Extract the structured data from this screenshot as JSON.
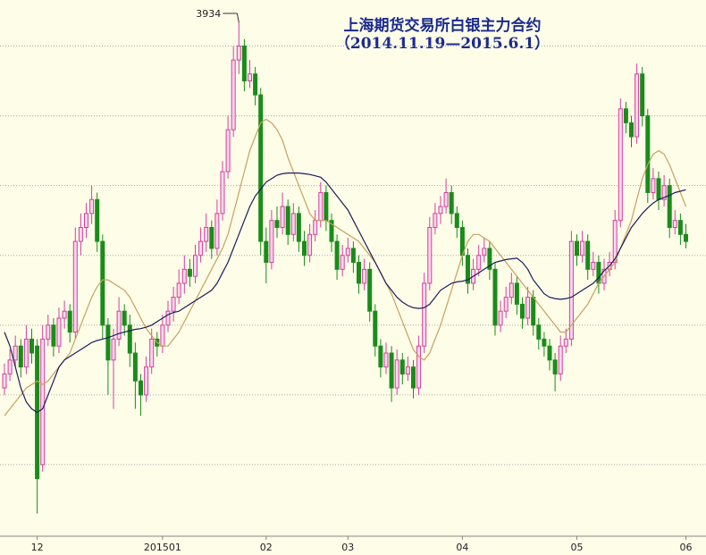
{
  "chart_data": {
    "type": "candlestick",
    "title": "上海期货交易所白银主力合约",
    "subtitle": "（2014.11.19—2015.6.1）",
    "ylim": [
      3200,
      3966
    ],
    "grid": [
      3300,
      3400,
      3500,
      3600,
      3700,
      3800,
      3900
    ],
    "up_color": "#d43fa0",
    "down_color": "#1a8c1a",
    "max_label_index": 43,
    "categories": [
      null,
      null,
      null,
      null,
      null,
      null,
      "12",
      null,
      null,
      null,
      null,
      null,
      null,
      null,
      null,
      null,
      null,
      null,
      null,
      null,
      null,
      null,
      null,
      null,
      null,
      null,
      null,
      null,
      null,
      "201501",
      null,
      null,
      null,
      null,
      null,
      null,
      null,
      null,
      null,
      null,
      null,
      null,
      null,
      null,
      null,
      null,
      null,
      null,
      "02",
      null,
      null,
      null,
      null,
      null,
      null,
      null,
      null,
      null,
      null,
      null,
      null,
      null,
      null,
      "03",
      null,
      null,
      null,
      null,
      null,
      null,
      null,
      null,
      null,
      null,
      null,
      null,
      null,
      null,
      null,
      null,
      null,
      null,
      null,
      null,
      "04",
      null,
      null,
      null,
      null,
      null,
      null,
      null,
      null,
      null,
      null,
      null,
      null,
      null,
      null,
      null,
      null,
      null,
      null,
      null,
      null,
      "05",
      null,
      null,
      null,
      null,
      null,
      null,
      null,
      null,
      null,
      null,
      null,
      null,
      null,
      null,
      null,
      null,
      null,
      null,
      null,
      "06"
    ],
    "ohlc": [
      [
        3410,
        3445,
        3400,
        3430
      ],
      [
        3430,
        3465,
        3420,
        3450
      ],
      [
        3450,
        3485,
        3440,
        3470
      ],
      [
        3470,
        3480,
        3425,
        3440
      ],
      [
        3440,
        3500,
        3430,
        3480
      ],
      [
        3480,
        3495,
        3445,
        3460
      ],
      [
        3470,
        3480,
        3230,
        3280
      ],
      [
        3300,
        3500,
        3290,
        3480
      ],
      [
        3480,
        3515,
        3470,
        3500
      ],
      [
        3500,
        3510,
        3455,
        3470
      ],
      [
        3470,
        3525,
        3460,
        3510
      ],
      [
        3510,
        3535,
        3495,
        3520
      ],
      [
        3520,
        3530,
        3475,
        3490
      ],
      [
        3490,
        3640,
        3480,
        3620
      ],
      [
        3620,
        3660,
        3600,
        3640
      ],
      [
        3640,
        3675,
        3625,
        3660
      ],
      [
        3660,
        3700,
        3645,
        3680
      ],
      [
        3680,
        3690,
        3605,
        3620
      ],
      [
        3620,
        3630,
        3480,
        3500
      ],
      [
        3500,
        3510,
        3400,
        3450
      ],
      [
        3450,
        3495,
        3380,
        3480
      ],
      [
        3480,
        3540,
        3470,
        3520
      ],
      [
        3520,
        3530,
        3485,
        3500
      ],
      [
        3500,
        3515,
        3440,
        3460
      ],
      [
        3460,
        3475,
        3380,
        3420
      ],
      [
        3420,
        3430,
        3370,
        3400
      ],
      [
        3400,
        3455,
        3390,
        3440
      ],
      [
        3440,
        3495,
        3430,
        3480
      ],
      [
        3480,
        3490,
        3455,
        3470
      ],
      [
        3470,
        3515,
        3460,
        3500
      ],
      [
        3500,
        3535,
        3490,
        3520
      ],
      [
        3520,
        3555,
        3505,
        3540
      ],
      [
        3540,
        3580,
        3530,
        3560
      ],
      [
        3560,
        3600,
        3545,
        3580
      ],
      [
        3580,
        3595,
        3555,
        3570
      ],
      [
        3570,
        3615,
        3560,
        3600
      ],
      [
        3600,
        3640,
        3590,
        3620
      ],
      [
        3620,
        3660,
        3605,
        3640
      ],
      [
        3640,
        3650,
        3595,
        3610
      ],
      [
        3610,
        3680,
        3600,
        3660
      ],
      [
        3660,
        3735,
        3650,
        3720
      ],
      [
        3720,
        3800,
        3710,
        3780
      ],
      [
        3780,
        3900,
        3770,
        3880
      ],
      [
        3880,
        3934,
        3860,
        3900
      ],
      [
        3900,
        3910,
        3835,
        3850
      ],
      [
        3850,
        3880,
        3840,
        3860
      ],
      [
        3860,
        3870,
        3815,
        3830
      ],
      [
        3830,
        3840,
        3600,
        3620
      ],
      [
        3620,
        3640,
        3560,
        3590
      ],
      [
        3590,
        3665,
        3580,
        3650
      ],
      [
        3650,
        3670,
        3625,
        3640
      ],
      [
        3640,
        3690,
        3630,
        3670
      ],
      [
        3670,
        3680,
        3615,
        3630
      ],
      [
        3630,
        3675,
        3620,
        3660
      ],
      [
        3660,
        3670,
        3605,
        3620
      ],
      [
        3620,
        3635,
        3585,
        3600
      ],
      [
        3600,
        3645,
        3590,
        3630
      ],
      [
        3630,
        3665,
        3620,
        3650
      ],
      [
        3650,
        3705,
        3640,
        3690
      ],
      [
        3690,
        3700,
        3635,
        3650
      ],
      [
        3650,
        3660,
        3605,
        3620
      ],
      [
        3620,
        3630,
        3565,
        3580
      ],
      [
        3580,
        3615,
        3570,
        3600
      ],
      [
        3600,
        3625,
        3590,
        3610
      ],
      [
        3610,
        3620,
        3575,
        3590
      ],
      [
        3590,
        3600,
        3545,
        3560
      ],
      [
        3560,
        3595,
        3550,
        3580
      ],
      [
        3580,
        3590,
        3505,
        3520
      ],
      [
        3520,
        3530,
        3455,
        3470
      ],
      [
        3470,
        3480,
        3425,
        3440
      ],
      [
        3440,
        3475,
        3430,
        3460
      ],
      [
        3460,
        3470,
        3390,
        3410
      ],
      [
        3410,
        3465,
        3400,
        3450
      ],
      [
        3450,
        3460,
        3415,
        3430
      ],
      [
        3430,
        3455,
        3420,
        3440
      ],
      [
        3440,
        3450,
        3395,
        3410
      ],
      [
        3410,
        3485,
        3400,
        3470
      ],
      [
        3470,
        3575,
        3460,
        3560
      ],
      [
        3560,
        3655,
        3550,
        3640
      ],
      [
        3640,
        3675,
        3630,
        3660
      ],
      [
        3660,
        3685,
        3645,
        3670
      ],
      [
        3670,
        3710,
        3660,
        3690
      ],
      [
        3690,
        3700,
        3645,
        3660
      ],
      [
        3660,
        3670,
        3625,
        3640
      ],
      [
        3640,
        3650,
        3585,
        3600
      ],
      [
        3600,
        3610,
        3545,
        3560
      ],
      [
        3560,
        3595,
        3550,
        3580
      ],
      [
        3580,
        3615,
        3570,
        3600
      ],
      [
        3600,
        3625,
        3590,
        3610
      ],
      [
        3610,
        3620,
        3565,
        3580
      ],
      [
        3580,
        3590,
        3485,
        3500
      ],
      [
        3500,
        3535,
        3490,
        3520
      ],
      [
        3520,
        3555,
        3510,
        3540
      ],
      [
        3540,
        3575,
        3530,
        3560
      ],
      [
        3560,
        3570,
        3515,
        3530
      ],
      [
        3530,
        3540,
        3495,
        3510
      ],
      [
        3510,
        3555,
        3500,
        3540
      ],
      [
        3540,
        3550,
        3485,
        3500
      ],
      [
        3500,
        3510,
        3465,
        3480
      ],
      [
        3480,
        3490,
        3455,
        3470
      ],
      [
        3470,
        3480,
        3435,
        3450
      ],
      [
        3450,
        3460,
        3405,
        3430
      ],
      [
        3430,
        3485,
        3420,
        3470
      ],
      [
        3470,
        3495,
        3460,
        3480
      ],
      [
        3480,
        3635,
        3470,
        3620
      ],
      [
        3620,
        3630,
        3585,
        3600
      ],
      [
        3600,
        3635,
        3590,
        3620
      ],
      [
        3620,
        3630,
        3565,
        3580
      ],
      [
        3580,
        3605,
        3570,
        3590
      ],
      [
        3590,
        3600,
        3545,
        3560
      ],
      [
        3560,
        3595,
        3550,
        3580
      ],
      [
        3580,
        3605,
        3570,
        3590
      ],
      [
        3590,
        3665,
        3580,
        3650
      ],
      [
        3650,
        3825,
        3640,
        3810
      ],
      [
        3810,
        3820,
        3775,
        3790
      ],
      [
        3790,
        3800,
        3755,
        3770
      ],
      [
        3770,
        3875,
        3760,
        3860
      ],
      [
        3860,
        3870,
        3785,
        3800
      ],
      [
        3800,
        3810,
        3675,
        3690
      ],
      [
        3690,
        3725,
        3680,
        3710
      ],
      [
        3710,
        3720,
        3665,
        3680
      ],
      [
        3680,
        3715,
        3670,
        3700
      ],
      [
        3700,
        3710,
        3625,
        3640
      ],
      [
        3640,
        3665,
        3630,
        3650
      ],
      [
        3650,
        3660,
        3615,
        3630
      ],
      [
        3630,
        3645,
        3610,
        3620
      ]
    ],
    "lines": [
      {
        "color": "#c8a060",
        "values": [
          3370,
          3380,
          3390,
          3400,
          3410,
          3415,
          3420,
          3415,
          3420,
          3430,
          3440,
          3450,
          3460,
          3480,
          3500,
          3520,
          3540,
          3555,
          3565,
          3565,
          3560,
          3555,
          3550,
          3540,
          3525,
          3510,
          3495,
          3485,
          3475,
          3470,
          3470,
          3480,
          3490,
          3505,
          3520,
          3535,
          3550,
          3565,
          3580,
          3595,
          3610,
          3630,
          3660,
          3690,
          3720,
          3750,
          3770,
          3790,
          3795,
          3790,
          3780,
          3765,
          3740,
          3720,
          3700,
          3680,
          3660,
          3650,
          3650,
          3650,
          3645,
          3640,
          3635,
          3630,
          3625,
          3620,
          3610,
          3600,
          3590,
          3575,
          3560,
          3545,
          3525,
          3505,
          3485,
          3465,
          3455,
          3450,
          3460,
          3480,
          3500,
          3525,
          3550,
          3575,
          3600,
          3620,
          3630,
          3630,
          3625,
          3620,
          3610,
          3600,
          3590,
          3580,
          3570,
          3560,
          3550,
          3540,
          3530,
          3520,
          3510,
          3500,
          3490,
          3490,
          3500,
          3510,
          3520,
          3530,
          3545,
          3560,
          3570,
          3580,
          3590,
          3610,
          3630,
          3650,
          3680,
          3710,
          3730,
          3745,
          3750,
          3745,
          3730,
          3710,
          3690,
          3670
        ]
      },
      {
        "color": "#1c1c5c",
        "values": [
          3490,
          3470,
          3440,
          3410,
          3390,
          3380,
          3375,
          3380,
          3400,
          3420,
          3440,
          3450,
          3455,
          3460,
          3465,
          3470,
          3475,
          3478,
          3480,
          3482,
          3485,
          3488,
          3490,
          3492,
          3494,
          3495,
          3497,
          3500,
          3505,
          3510,
          3515,
          3518,
          3520,
          3525,
          3530,
          3535,
          3540,
          3545,
          3550,
          3560,
          3575,
          3590,
          3610,
          3630,
          3650,
          3670,
          3685,
          3695,
          3705,
          3710,
          3715,
          3717,
          3718,
          3718,
          3718,
          3717,
          3716,
          3714,
          3712,
          3705,
          3695,
          3685,
          3675,
          3665,
          3650,
          3635,
          3620,
          3605,
          3590,
          3575,
          3560,
          3550,
          3540,
          3533,
          3528,
          3525,
          3524,
          3525,
          3530,
          3540,
          3550,
          3555,
          3560,
          3562,
          3563,
          3565,
          3570,
          3575,
          3580,
          3585,
          3590,
          3592,
          3594,
          3595,
          3596,
          3590,
          3580,
          3565,
          3555,
          3545,
          3540,
          3538,
          3537,
          3538,
          3540,
          3545,
          3550,
          3555,
          3560,
          3568,
          3578,
          3585,
          3595,
          3610,
          3625,
          3640,
          3650,
          3660,
          3668,
          3675,
          3680,
          3683,
          3686,
          3690,
          3692,
          3694
        ]
      }
    ]
  }
}
